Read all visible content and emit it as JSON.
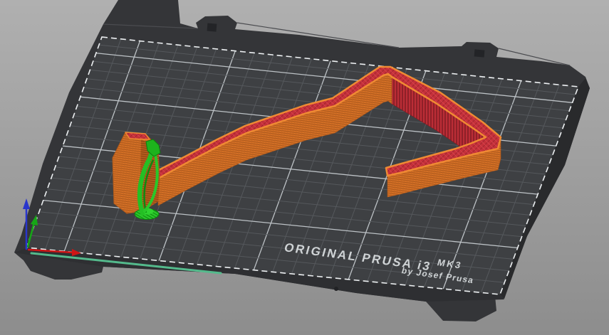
{
  "viewport": {
    "label": "3D print preview viewport",
    "bed": {
      "brand": "ORIGINAL PRUSA i3",
      "model": "MK3",
      "byline": "by Josef Prusa"
    },
    "axes": [
      {
        "id": "x",
        "color": "#cf1515"
      },
      {
        "id": "y",
        "color": "#16a616"
      },
      {
        "id": "z",
        "color": "#2936cc"
      }
    ],
    "colors": {
      "background_top": "#b0b0b0",
      "background_bottom": "#8d8d8d",
      "bed_frame": "#343538",
      "bed_surface": "#3e4043",
      "grid_minor": "#55585c",
      "grid_major": "#bdc2c6",
      "bed_front_edge_line": "#54ba8c",
      "model_perimeter_orange": "#d97327",
      "model_top_infill_red": "#c5303a",
      "support_green": "#2bc82b"
    }
  }
}
